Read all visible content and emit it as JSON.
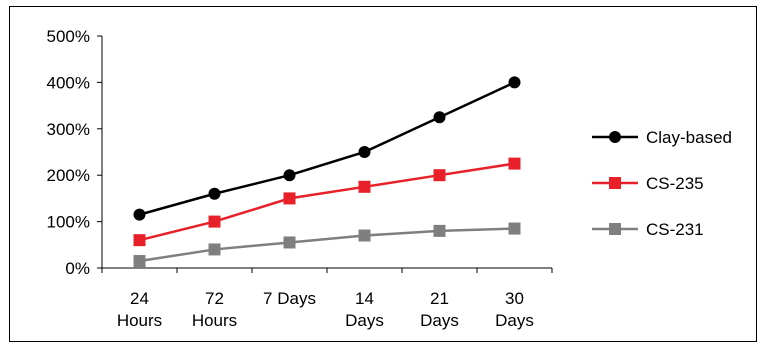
{
  "chart_data": {
    "type": "line",
    "categories": [
      [
        "24",
        "Hours"
      ],
      [
        "72",
        "Hours"
      ],
      [
        "7 Days"
      ],
      [
        "14",
        "Days"
      ],
      [
        "21",
        "Days"
      ],
      [
        "30",
        "Days"
      ]
    ],
    "ylim": [
      0,
      500
    ],
    "yticks": [
      0,
      100,
      200,
      300,
      400,
      500
    ],
    "ytick_labels": [
      "0%",
      "100%",
      "200%",
      "300%",
      "400%",
      "500%"
    ],
    "grid": false,
    "legend_position": "right",
    "series": [
      {
        "name": "Clay-based",
        "values": [
          115,
          160,
          200,
          250,
          325,
          400
        ],
        "color": "#000000",
        "marker": "circle"
      },
      {
        "name": "CS-235",
        "values": [
          60,
          100,
          150,
          175,
          200,
          225
        ],
        "color": "#e8202a",
        "marker": "square"
      },
      {
        "name": "CS-231",
        "values": [
          15,
          40,
          55,
          70,
          80,
          85
        ],
        "color": "#7f7f7f",
        "marker": "square"
      }
    ]
  }
}
